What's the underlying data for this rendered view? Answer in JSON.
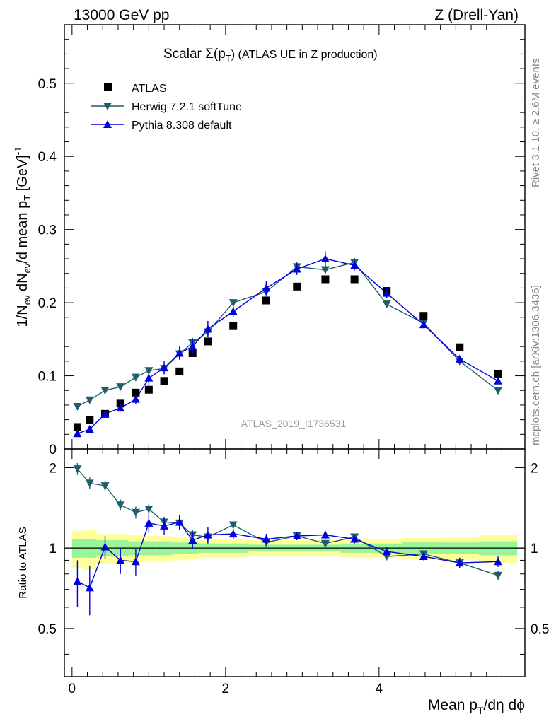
{
  "header": {
    "left": "13000 GeV pp",
    "right": "Z (Drell-Yan)"
  },
  "side_labels": {
    "rivet": "Rivet 3.1.10, ≥ 2.6M events",
    "mcplots": "mcplots.cern.ch [arXiv:1306.3436]"
  },
  "chart_data": [
    {
      "type": "scatter",
      "title": "Scalar Σ(p_T) (ATLAS UE in Z production)",
      "title_main": "Scalar Σ(p",
      "title_sub": "T",
      "title_tail": ") (ATLAS UE in Z production)",
      "analysis_label": "ATLAS_2019_I1736531",
      "ylabel": "1/N_ev dN_ev/d mean p_T [GeV]^-1",
      "xlabel": "Mean p_T/dη dϕ",
      "xlim": [
        -0.1,
        5.9
      ],
      "ylim": [
        0,
        0.58
      ],
      "x_ticks": [
        "0",
        "2",
        "4"
      ],
      "y_ticks": [
        "0",
        "0.1",
        "0.2",
        "0.3",
        "0.4",
        "0.5"
      ],
      "x": [
        0.07,
        0.23,
        0.43,
        0.63,
        0.83,
        1.0,
        1.2,
        1.4,
        1.57,
        1.77,
        2.1,
        2.53,
        2.93,
        3.3,
        3.68,
        4.1,
        4.58,
        5.05,
        5.55
      ],
      "series": [
        {
          "name": "ATLAS",
          "color": "#000000",
          "marker": "square",
          "values": [
            0.03,
            0.04,
            0.048,
            0.062,
            0.077,
            0.081,
            0.093,
            0.106,
            0.131,
            0.147,
            0.168,
            0.203,
            0.222,
            0.232,
            0.232,
            0.216,
            0.182,
            0.139,
            0.103
          ]
        },
        {
          "name": "Herwig 7.2.1 softTune",
          "color": "#1f5f6b",
          "marker": "triangle-down",
          "values": [
            0.058,
            0.067,
            0.08,
            0.085,
            0.098,
            0.107,
            0.11,
            0.13,
            0.145,
            0.16,
            0.2,
            0.215,
            0.249,
            0.245,
            0.255,
            0.198,
            0.172,
            0.12,
            0.08
          ],
          "errors": [
            0.004,
            0.003,
            0.004,
            0.004,
            0.005,
            0.005,
            0.006,
            0.007,
            0.007,
            0.007,
            0.004,
            0.007,
            0.007,
            0.006,
            0.006,
            0.005,
            0.005,
            0.004,
            0.003
          ]
        },
        {
          "name": "Pythia 8.308 default",
          "color": "#0000dd",
          "marker": "triangle-up",
          "values": [
            0.021,
            0.027,
            0.048,
            0.056,
            0.068,
            0.097,
            0.111,
            0.131,
            0.14,
            0.164,
            0.188,
            0.22,
            0.246,
            0.26,
            0.251,
            0.213,
            0.17,
            0.123,
            0.093
          ],
          "errors": [
            0.003,
            0.003,
            0.004,
            0.005,
            0.006,
            0.009,
            0.009,
            0.009,
            0.01,
            0.011,
            0.008,
            0.009,
            0.008,
            0.01,
            0.007,
            0.007,
            0.005,
            0.005,
            0.004
          ]
        }
      ]
    },
    {
      "type": "line",
      "ylabel": "Ratio to ATLAS",
      "xlim": [
        -0.1,
        5.9
      ],
      "ylim": [
        0.33,
        2.35
      ],
      "y_ticks": [
        "0.5",
        "1",
        "2"
      ],
      "y_tick_values": [
        0.5,
        1,
        2
      ],
      "x": [
        0.07,
        0.23,
        0.43,
        0.63,
        0.83,
        1.0,
        1.2,
        1.4,
        1.57,
        1.77,
        2.1,
        2.53,
        2.93,
        3.3,
        3.68,
        4.1,
        4.58,
        5.05,
        5.55
      ],
      "band_inner": [
        0.08,
        0.08,
        0.07,
        0.07,
        0.06,
        0.06,
        0.06,
        0.05,
        0.05,
        0.04,
        0.04,
        0.03,
        0.03,
        0.03,
        0.04,
        0.04,
        0.05,
        0.05,
        0.06
      ],
      "band_outer": [
        0.16,
        0.17,
        0.13,
        0.13,
        0.12,
        0.11,
        0.11,
        0.1,
        0.09,
        0.08,
        0.08,
        0.07,
        0.07,
        0.07,
        0.08,
        0.08,
        0.09,
        0.1,
        0.12
      ],
      "bin_edges": [
        0.0,
        0.15,
        0.32,
        0.53,
        0.73,
        0.92,
        1.1,
        1.3,
        1.5,
        1.65,
        1.9,
        2.3,
        2.75,
        3.1,
        3.5,
        3.9,
        4.3,
        4.85,
        5.3,
        5.8
      ],
      "series": [
        {
          "name": "Herwig 7.2.1 softTune",
          "color": "#1f5f6b",
          "marker": "triangle-down",
          "values": [
            1.98,
            1.75,
            1.71,
            1.45,
            1.36,
            1.4,
            1.25,
            1.24,
            1.12,
            1.1,
            1.22,
            1.05,
            1.11,
            1.04,
            1.1,
            0.93,
            0.95,
            0.88,
            0.79
          ],
          "errors": [
            0.1,
            0.09,
            0.08,
            0.07,
            0.07,
            0.06,
            0.06,
            0.06,
            0.05,
            0.05,
            0.03,
            0.04,
            0.04,
            0.03,
            0.03,
            0.02,
            0.03,
            0.03,
            0.03
          ]
        },
        {
          "name": "Pythia 8.308 default",
          "color": "#0000dd",
          "marker": "triangle-up",
          "values": [
            0.75,
            0.71,
            1.01,
            0.9,
            0.89,
            1.24,
            1.21,
            1.25,
            1.07,
            1.12,
            1.13,
            1.08,
            1.11,
            1.12,
            1.08,
            0.97,
            0.93,
            0.88,
            0.89
          ],
          "errors": [
            0.15,
            0.15,
            0.1,
            0.1,
            0.1,
            0.1,
            0.09,
            0.08,
            0.08,
            0.08,
            0.05,
            0.05,
            0.04,
            0.04,
            0.04,
            0.04,
            0.03,
            0.04,
            0.04
          ]
        }
      ]
    }
  ]
}
